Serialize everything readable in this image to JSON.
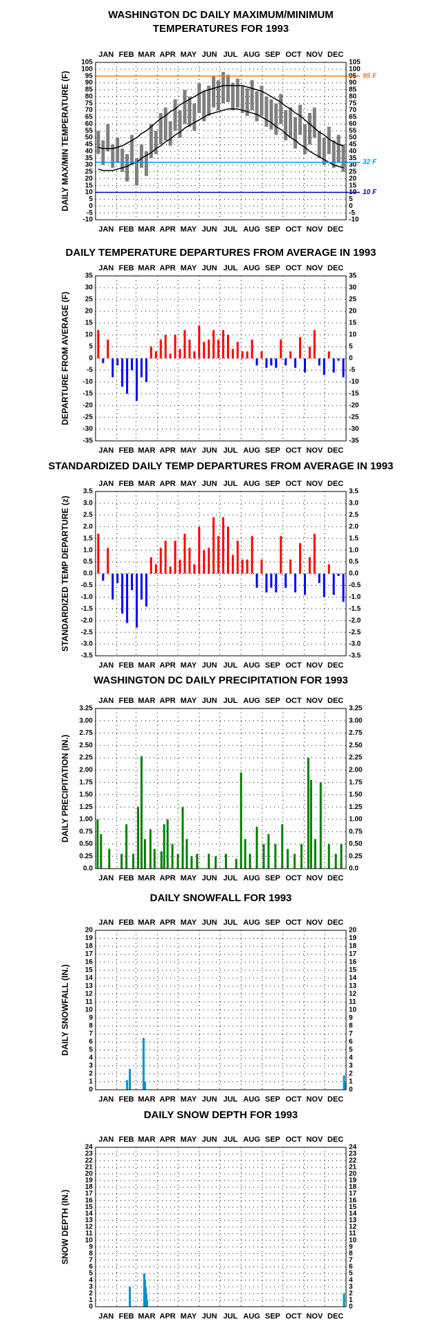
{
  "chart_data": [
    {
      "type": "range",
      "title": [
        "WASHINGTON DC DAILY MAXIMUM/MINIMUM",
        "TEMPERATURES FOR 1993"
      ],
      "ylabel": "DAILY MAX/MIN TEMPERATURE (F)",
      "categories": [
        "JAN",
        "FEB",
        "MAR",
        "APR",
        "MAY",
        "JUN",
        "JUL",
        "AUG",
        "SEP",
        "OCT",
        "NOV",
        "DEC"
      ],
      "xlim": [
        0,
        365
      ],
      "xticks": [
        0,
        31,
        59,
        90,
        120,
        151,
        181,
        212,
        243,
        273,
        304,
        334,
        365
      ],
      "ylim": [
        -10,
        105
      ],
      "yticks": [
        -10,
        -5,
        0,
        5,
        10,
        15,
        20,
        25,
        30,
        35,
        40,
        45,
        50,
        55,
        60,
        65,
        70,
        75,
        80,
        85,
        90,
        95,
        100,
        105
      ],
      "grid": true,
      "bar_color": "#808080",
      "normal_color": "#000000",
      "x": [
        4,
        11,
        18,
        25,
        32,
        39,
        46,
        53,
        60,
        67,
        74,
        81,
        88,
        95,
        102,
        109,
        116,
        123,
        130,
        137,
        144,
        151,
        158,
        165,
        172,
        179,
        186,
        193,
        200,
        207,
        214,
        221,
        228,
        235,
        242,
        249,
        256,
        263,
        270,
        277,
        284,
        291,
        298,
        305,
        312,
        319,
        326,
        333,
        340,
        347,
        354,
        361
      ],
      "max": [
        55,
        48,
        60,
        45,
        50,
        42,
        38,
        52,
        35,
        45,
        40,
        60,
        55,
        68,
        72,
        62,
        78,
        70,
        85,
        80,
        75,
        90,
        84,
        88,
        95,
        92,
        98,
        96,
        90,
        93,
        88,
        86,
        92,
        84,
        88,
        80,
        78,
        75,
        82,
        70,
        72,
        65,
        74,
        60,
        68,
        72,
        55,
        50,
        58,
        48,
        52,
        45
      ],
      "min": [
        38,
        30,
        40,
        28,
        32,
        25,
        18,
        30,
        15,
        28,
        22,
        35,
        38,
        45,
        48,
        44,
        55,
        50,
        60,
        58,
        55,
        68,
        62,
        66,
        72,
        70,
        75,
        76,
        70,
        72,
        68,
        66,
        70,
        62,
        66,
        58,
        56,
        52,
        60,
        48,
        50,
        42,
        52,
        38,
        45,
        50,
        35,
        30,
        38,
        28,
        32,
        25
      ],
      "normal_max": [
        43,
        42,
        42,
        42,
        43,
        44,
        46,
        48,
        50,
        53,
        55,
        58,
        61,
        64,
        66,
        69,
        71,
        74,
        76,
        78,
        80,
        82,
        84,
        85,
        86,
        87,
        88,
        88,
        88,
        88,
        88,
        87,
        86,
        85,
        84,
        82,
        80,
        78,
        76,
        73,
        71,
        68,
        66,
        63,
        60,
        57,
        54,
        52,
        49,
        47,
        45,
        44
      ],
      "normal_min": [
        27,
        26,
        26,
        26,
        27,
        28,
        29,
        31,
        32,
        35,
        37,
        39,
        42,
        44,
        47,
        49,
        52,
        54,
        57,
        59,
        61,
        63,
        65,
        67,
        68,
        69,
        70,
        71,
        71,
        71,
        70,
        69,
        68,
        67,
        65,
        63,
        61,
        58,
        56,
        53,
        50,
        48,
        45,
        43,
        40,
        38,
        36,
        34,
        32,
        30,
        29,
        28
      ],
      "reference_lines": [
        {
          "value": 95,
          "label": "95 F",
          "color": "#ff8000"
        },
        {
          "value": 32,
          "label": "32 F",
          "color": "#00a0e0"
        },
        {
          "value": 10,
          "label": "10 F",
          "color": "#0000c0"
        }
      ]
    },
    {
      "type": "bar",
      "title": [
        "DAILY TEMPERATURE DEPARTURES FROM AVERAGE IN 1993"
      ],
      "ylabel": "DEPARTURE FROM AVERAGE (F)",
      "categories": [
        "JAN",
        "FEB",
        "MAR",
        "APR",
        "MAY",
        "JUN",
        "JUL",
        "AUG",
        "SEP",
        "OCT",
        "NOV",
        "DEC"
      ],
      "xlim": [
        0,
        365
      ],
      "xticks": [
        0,
        31,
        59,
        90,
        120,
        151,
        181,
        212,
        243,
        273,
        304,
        334,
        365
      ],
      "ylim": [
        -35,
        35
      ],
      "yticks": [
        -35,
        -30,
        -25,
        -20,
        -15,
        -10,
        -5,
        0,
        5,
        10,
        15,
        20,
        25,
        30,
        35
      ],
      "grid": true,
      "positive_color": "#ff0000",
      "negative_color": "#0000ff",
      "x": [
        4,
        11,
        18,
        25,
        32,
        39,
        46,
        53,
        60,
        67,
        74,
        81,
        88,
        95,
        102,
        109,
        116,
        123,
        130,
        137,
        144,
        151,
        158,
        165,
        172,
        179,
        186,
        193,
        200,
        207,
        214,
        221,
        228,
        235,
        242,
        249,
        256,
        263,
        270,
        277,
        284,
        291,
        298,
        305,
        312,
        319,
        326,
        333,
        340,
        347,
        354,
        361
      ],
      "values": [
        12,
        -2,
        8,
        -8,
        -3,
        -12,
        -15,
        -5,
        -18,
        -8,
        -10,
        5,
        3,
        8,
        10,
        2,
        10,
        4,
        12,
        8,
        3,
        14,
        7,
        8,
        12,
        8,
        12,
        10,
        4,
        7,
        3,
        3,
        8,
        -3,
        3,
        -4,
        -3,
        -4,
        8,
        -3,
        3,
        -4,
        9,
        -6,
        5,
        12,
        -3,
        -7,
        3,
        -6,
        -1,
        -8
      ]
    },
    {
      "type": "bar",
      "title": [
        "STANDARDIZED DAILY TEMP DEPARTURES FROM AVERAGE IN 1993"
      ],
      "ylabel": "STANDARDIZED TEMP DEPARTURE (z)",
      "categories": [
        "JAN",
        "FEB",
        "MAR",
        "APR",
        "MAY",
        "JUN",
        "JUL",
        "AUG",
        "SEP",
        "OCT",
        "NOV",
        "DEC"
      ],
      "xlim": [
        0,
        365
      ],
      "xticks": [
        0,
        31,
        59,
        90,
        120,
        151,
        181,
        212,
        243,
        273,
        304,
        334,
        365
      ],
      "ylim": [
        -3.5,
        3.5
      ],
      "yticks": [
        -3.5,
        {
          "value": -3,
          "label": "-3.0"
        },
        -2.5,
        {
          "value": -2,
          "label": "-2.0"
        },
        -1.5,
        {
          "value": -1,
          "label": "-1.0"
        },
        -0.5,
        {
          "value": 0,
          "label": "0.0"
        },
        0.5,
        {
          "value": 1,
          "label": "1.0"
        },
        1.5,
        {
          "value": 2,
          "label": "2.0"
        },
        2.5,
        {
          "value": 3,
          "label": "3.0"
        },
        3.5
      ],
      "grid": true,
      "positive_color": "#ff0000",
      "negative_color": "#0000ff",
      "x": [
        4,
        11,
        18,
        25,
        32,
        39,
        46,
        53,
        60,
        67,
        74,
        81,
        88,
        95,
        102,
        109,
        116,
        123,
        130,
        137,
        144,
        151,
        158,
        165,
        172,
        179,
        186,
        193,
        200,
        207,
        214,
        221,
        228,
        235,
        242,
        249,
        256,
        263,
        270,
        277,
        284,
        291,
        298,
        305,
        312,
        319,
        326,
        333,
        340,
        347,
        354,
        361
      ],
      "values": [
        1.7,
        -0.3,
        1.1,
        -1.1,
        -0.4,
        -1.7,
        -2.1,
        -0.7,
        -2.3,
        -1.1,
        -1.4,
        0.7,
        0.4,
        1.1,
        1.4,
        0.3,
        1.4,
        0.6,
        1.7,
        1.1,
        0.4,
        2.0,
        1.0,
        1.1,
        2.4,
        1.6,
        2.4,
        2.0,
        0.8,
        1.4,
        0.6,
        0.6,
        1.6,
        -0.6,
        0.6,
        -0.8,
        -0.6,
        -0.8,
        1.6,
        -0.6,
        0.6,
        -0.8,
        1.3,
        -0.9,
        0.7,
        1.7,
        -0.4,
        -1.0,
        0.4,
        -0.9,
        -0.1,
        -1.2
      ]
    },
    {
      "type": "bar",
      "title": [
        "WASHINGTON DC DAILY PRECIPITATION FOR 1993"
      ],
      "ylabel": "DAILY PRECIPITATION (IN.)",
      "categories": [
        "JAN",
        "FEB",
        "MAR",
        "APR",
        "MAY",
        "JUN",
        "JUL",
        "AUG",
        "SEP",
        "OCT",
        "NOV",
        "DEC"
      ],
      "xlim": [
        0,
        365
      ],
      "xticks": [
        0,
        31,
        59,
        90,
        120,
        151,
        181,
        212,
        243,
        273,
        304,
        334,
        365
      ],
      "ylim": [
        0,
        3.25
      ],
      "yticks": [
        {
          "value": 0,
          "label": "0.0"
        },
        0.25,
        {
          "value": 0.5,
          "label": "0.50"
        },
        0.75,
        {
          "value": 1,
          "label": "1.00"
        },
        1.25,
        {
          "value": 1.5,
          "label": "1.50"
        },
        1.75,
        {
          "value": 2,
          "label": "2.00"
        },
        2.25,
        {
          "value": 2.5,
          "label": "2.50"
        },
        2.75,
        {
          "value": 3,
          "label": "3.00"
        },
        3.25
      ],
      "grid": true,
      "color": "#008000",
      "x": [
        3,
        8,
        20,
        38,
        45,
        55,
        62,
        67,
        72,
        80,
        86,
        96,
        100,
        105,
        112,
        120,
        127,
        133,
        140,
        148,
        165,
        175,
        190,
        205,
        212,
        218,
        225,
        235,
        245,
        252,
        262,
        272,
        280,
        290,
        300,
        310,
        314,
        320,
        328,
        340,
        350,
        358
      ],
      "values": [
        1.0,
        0.7,
        0.4,
        0.3,
        0.9,
        0.3,
        1.25,
        2.28,
        0.6,
        0.8,
        0.4,
        0.35,
        0.9,
        1.0,
        0.5,
        0.3,
        1.25,
        0.6,
        0.25,
        0.3,
        0.3,
        0.25,
        0.3,
        0.2,
        1.95,
        0.6,
        0.3,
        0.85,
        0.5,
        0.7,
        0.5,
        0.9,
        0.4,
        0.3,
        0.5,
        2.25,
        1.8,
        0.6,
        1.75,
        0.5,
        0.3,
        0.5
      ]
    },
    {
      "type": "bar",
      "title": [
        "DAILY SNOWFALL FOR 1993"
      ],
      "ylabel": "DAILY SNOWFALL (IN.)",
      "categories": [
        "JAN",
        "FEB",
        "MAR",
        "APR",
        "MAY",
        "JUN",
        "JUL",
        "AUG",
        "SEP",
        "OCT",
        "NOV",
        "DEC"
      ],
      "xlim": [
        0,
        365
      ],
      "xticks": [
        0,
        31,
        59,
        90,
        120,
        151,
        181,
        212,
        243,
        273,
        304,
        334,
        365
      ],
      "ylim": [
        0,
        20
      ],
      "yticks": [
        0,
        1,
        2,
        3,
        4,
        5,
        6,
        7,
        8,
        9,
        10,
        11,
        12,
        13,
        14,
        15,
        16,
        17,
        18,
        19,
        20
      ],
      "grid": true,
      "color": "#0090d0",
      "x": [
        46,
        50,
        70,
        72,
        362,
        363
      ],
      "values": [
        1.2,
        2.6,
        6.5,
        1.0,
        1.8,
        0.9
      ]
    },
    {
      "type": "bar",
      "title": [
        "DAILY SNOW DEPTH FOR 1993"
      ],
      "ylabel": "SNOW DEPTH (IN.)",
      "categories": [
        "JAN",
        "FEB",
        "MAR",
        "APR",
        "MAY",
        "JUN",
        "JUL",
        "AUG",
        "SEP",
        "OCT",
        "NOV",
        "DEC"
      ],
      "xlim": [
        0,
        365
      ],
      "xticks": [
        0,
        31,
        59,
        90,
        120,
        151,
        181,
        212,
        243,
        273,
        304,
        334,
        365
      ],
      "ylim": [
        0,
        24
      ],
      "yticks": [
        0,
        1,
        2,
        3,
        4,
        5,
        6,
        7,
        8,
        9,
        10,
        11,
        12,
        13,
        14,
        15,
        16,
        17,
        18,
        19,
        20,
        21,
        22,
        23,
        24
      ],
      "grid": true,
      "color": "#0090d0",
      "x": [
        50,
        71,
        72,
        73,
        74,
        75,
        362
      ],
      "values": [
        3,
        5,
        4,
        3,
        2,
        1,
        2
      ]
    }
  ]
}
